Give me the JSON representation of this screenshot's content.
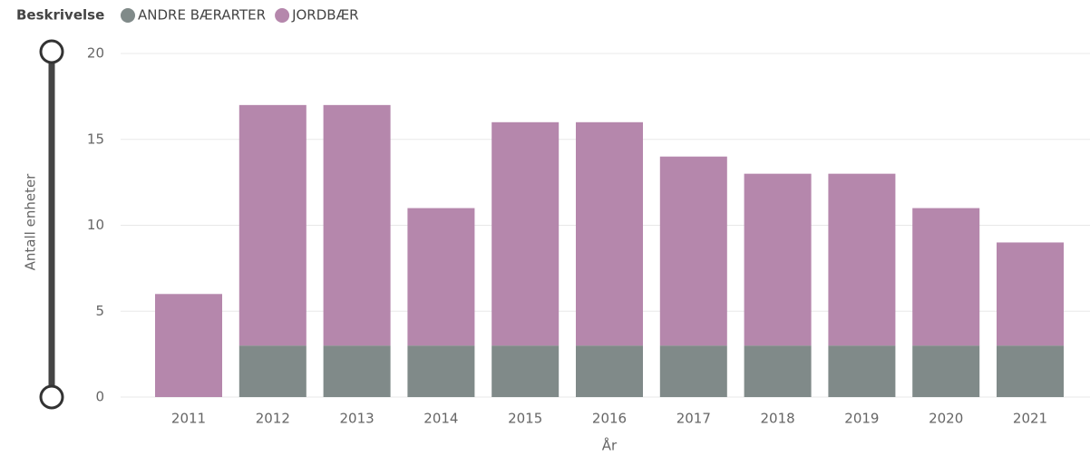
{
  "chart_data": {
    "type": "stacked_bar",
    "legend_title": "Beskrivelse",
    "x_label": "År",
    "y_label": "Antall enheter",
    "categories": [
      "2011",
      "2012",
      "2013",
      "2014",
      "2015",
      "2016",
      "2017",
      "2018",
      "2019",
      "2020",
      "2021"
    ],
    "series": [
      {
        "name": "ANDRE BÆRARTER",
        "color": "#808a89",
        "values": [
          null,
          3,
          3,
          3,
          3,
          3,
          3,
          3,
          3,
          3,
          3
        ]
      },
      {
        "name": "JORDBÆR",
        "color": "#b587ac",
        "values": [
          6,
          14,
          14,
          8,
          13,
          13,
          11,
          10,
          10,
          8,
          6
        ]
      }
    ],
    "ylim": [
      0,
      20
    ],
    "yticks": [
      0,
      5,
      10,
      15,
      20
    ],
    "grid": true,
    "legend": "top-left"
  }
}
